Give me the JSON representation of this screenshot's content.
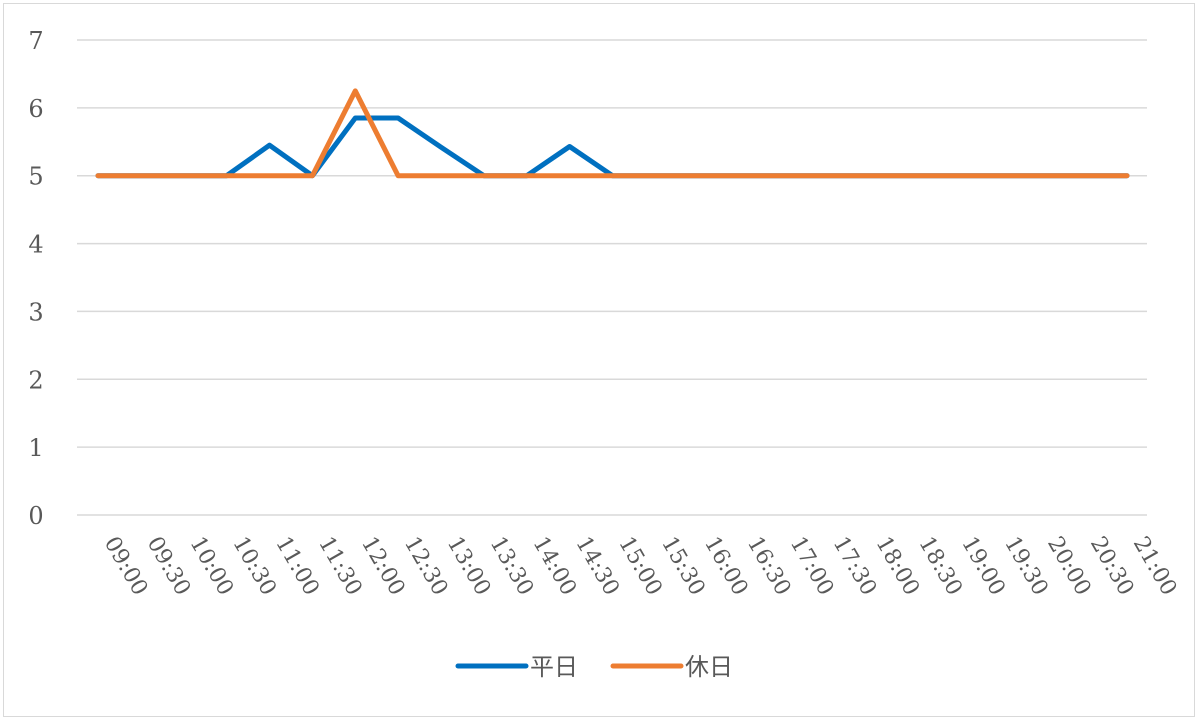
{
  "chart_data": {
    "type": "line",
    "title": "",
    "xlabel": "",
    "ylabel": "",
    "ylim": [
      0,
      7
    ],
    "yticks": [
      0,
      1,
      2,
      3,
      4,
      5,
      6,
      7
    ],
    "grid": true,
    "legend_position": "bottom",
    "categories": [
      "09:00",
      "09:30",
      "10:00",
      "10:30",
      "11:00",
      "11:30",
      "12:00",
      "12:30",
      "13:00",
      "13:30",
      "14:00",
      "14:30",
      "15:00",
      "15:30",
      "16:00",
      "16:30",
      "17:00",
      "17:30",
      "18:00",
      "18:30",
      "19:00",
      "19:30",
      "20:00",
      "20:30",
      "21:00"
    ],
    "series": [
      {
        "name": "平日",
        "color": "#0070c0",
        "values": [
          5,
          5,
          5,
          5,
          5.45,
          5,
          5.85,
          5.85,
          5.42,
          5,
          5,
          5.43,
          5,
          5,
          5,
          5,
          5,
          5,
          5,
          5,
          5,
          5,
          5,
          5,
          5
        ]
      },
      {
        "name": "休日",
        "color": "#ed7d31",
        "values": [
          5,
          5,
          5,
          5,
          5,
          5,
          6.25,
          5,
          5,
          5,
          5,
          5,
          5,
          5,
          5,
          5,
          5,
          5,
          5,
          5,
          5,
          5,
          5,
          5,
          5
        ]
      }
    ]
  }
}
